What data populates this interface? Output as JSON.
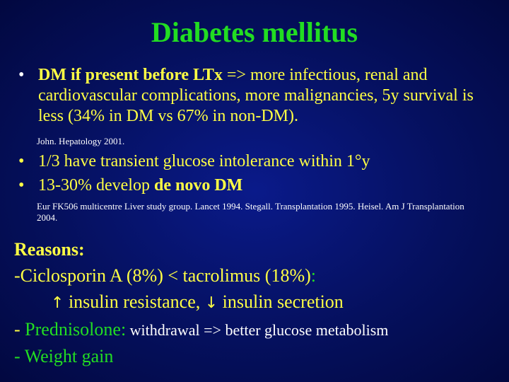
{
  "title": "Diabetes mellitus",
  "bullet_char": "•",
  "bullet1": {
    "bold": "DM if present before LTx",
    "rest": " => more infectious, renal and cardiovascular complications, more malignancies, 5y survival is less (34% in DM vs 67% in non-DM)."
  },
  "ref1": "John. Hepatology 2001.",
  "bullet2": "1/3 have transient glucose intolerance within 1°y",
  "bullet3": {
    "prefix": "13-30% develop ",
    "bold": "de novo DM"
  },
  "ref2": "Eur FK506 multicentre Liver study group. Lancet 1994. Stegall. Transplantation 1995. Heisel. Am J Transplantation 2004.",
  "reasons": {
    "heading": "Reasons:",
    "line1_prefix": "-Ciclosporin A (8%) < tacrolimus (18%)",
    "line1_suffix": ":",
    "line2_part1": " insulin resistance, ",
    "line2_part2": " insulin secretion",
    "arrow_up": "↑",
    "arrow_down": "↓",
    "line3_prefix": "- ",
    "line3_drug": "Prednisolone",
    "line3_colon": ":",
    "line3_rest": " withdrawal => better glucose metabolism",
    "line4": "- Weight gain"
  },
  "colors": {
    "background": "#05105e",
    "title": "#22dd22",
    "highlight": "#ffff44",
    "text": "#ffffff"
  }
}
